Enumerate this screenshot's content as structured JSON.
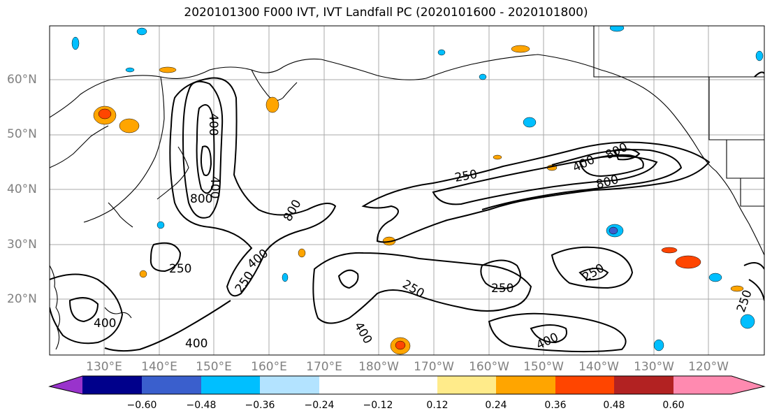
{
  "title": "2020101300 F000 IVT, IVT Landfall PC (2020101600 - 2020101800)",
  "lat_labels": [
    "60°N",
    "50°N",
    "40°N",
    "30°N",
    "20°N"
  ],
  "lon_labels": [
    "130°E",
    "140°E",
    "150°E",
    "160°E",
    "170°E",
    "180°W",
    "170°W",
    "160°W",
    "150°W",
    "140°W",
    "130°W",
    "120°W"
  ],
  "contour_labels": [
    "250",
    "400",
    "800",
    "800",
    "400",
    "400",
    "800",
    "250",
    "400",
    "800",
    "400",
    "250",
    "250",
    "250",
    "400",
    "250",
    "400",
    "400",
    "250"
  ],
  "colorbar": {
    "colors": [
      "#9933cc",
      "#00008b",
      "#3a5fcd",
      "#00bfff",
      "#b3e3ff",
      "#ffffff",
      "#ffeb8a",
      "#ffa500",
      "#ff4500",
      "#b22222",
      "#ff8ab0"
    ],
    "tick_labels": [
      "−0.60",
      "−0.48",
      "−0.36",
      "−0.24",
      "−0.12",
      "0.12",
      "0.24",
      "0.36",
      "0.48",
      "0.60"
    ]
  },
  "colors": {
    "gridline": "#a9a9a9",
    "contour": "#000000",
    "axis_text": "#808080"
  }
}
